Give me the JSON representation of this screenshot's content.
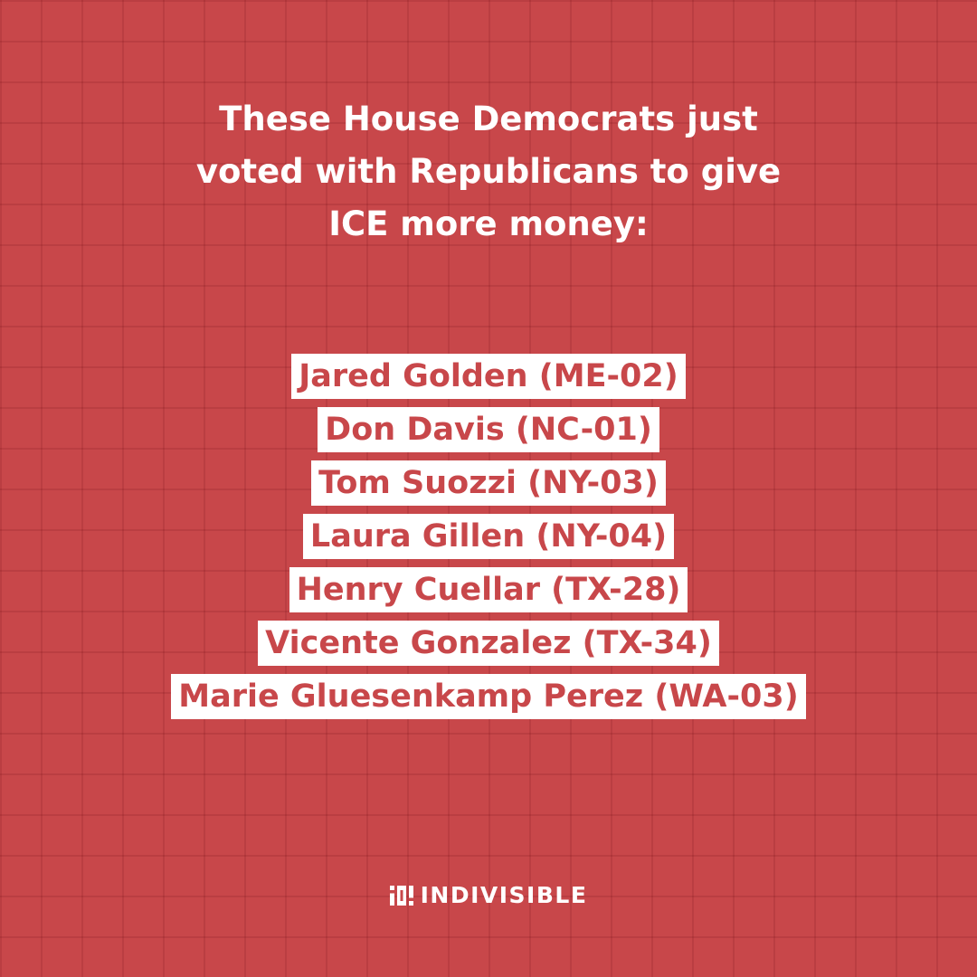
{
  "headline": {
    "line1": "These House Democrats just",
    "line2": "voted with Republicans to give",
    "line3": "ICE more money:"
  },
  "names": [
    "Jared Golden (ME-02)",
    "Don Davis (NC-01)",
    "Tom Suozzi (NY-03)",
    "Laura Gillen (NY-04)",
    "Henry Cuellar (TX-28)",
    "Vicente Gonzalez (TX-34)",
    "Marie Gluesenkamp Perez (WA-03)"
  ],
  "logo": {
    "text": "INDIVISIBLE",
    "icon": "indivisible-logo-icon"
  },
  "colors": {
    "background": "#c8474a",
    "grid": "#a83a3d",
    "tag_background": "#ffffff",
    "tag_text": "#c8474a",
    "headline_text": "#ffffff"
  }
}
